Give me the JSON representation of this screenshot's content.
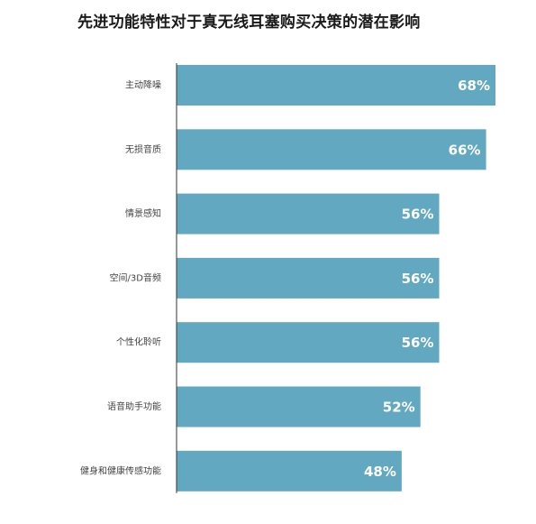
{
  "chart_data": {
    "type": "bar",
    "orientation": "horizontal",
    "title": "先进功能特性对于真无线耳塞购买决策的潜在影响",
    "categories": [
      "主动降噪",
      "无损音质",
      "情景感知",
      "空间/3D音频",
      "个性化聆听",
      "语音助手功能",
      "健身和健康传感功能"
    ],
    "values": [
      68,
      66,
      56,
      56,
      56,
      52,
      48
    ],
    "value_labels": [
      "68%",
      "66%",
      "56%",
      "56%",
      "56%",
      "52%",
      "48%"
    ],
    "xlim": [
      0,
      70
    ],
    "grid": false,
    "legend": "none",
    "bar_color": "#63a8c1",
    "axis_color": "#333333"
  }
}
